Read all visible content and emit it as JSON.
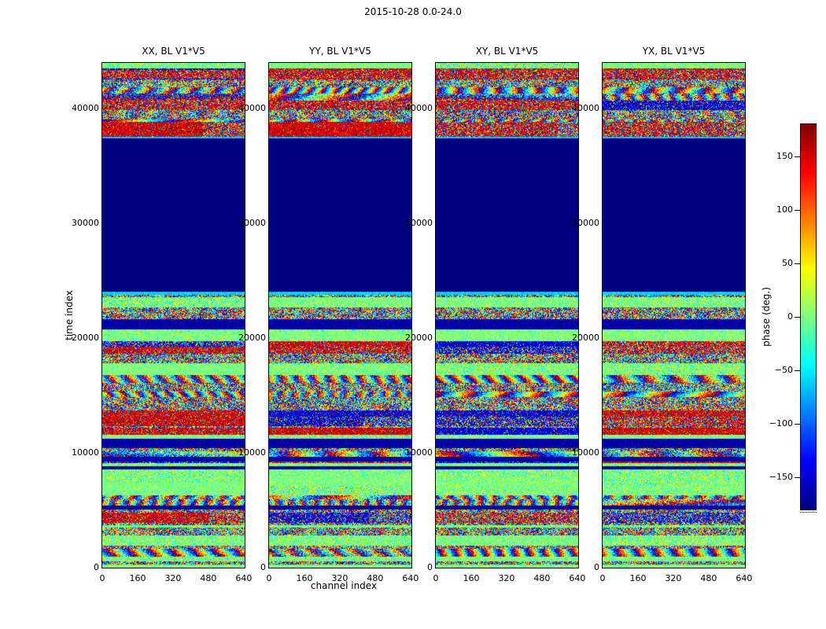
{
  "chart_data": {
    "type": "heatmap",
    "suptitle": "2015-10-28 0.0-24.0",
    "panels": [
      {
        "title": "XX, BL V1*V5"
      },
      {
        "title": "YY, BL V1*V5"
      },
      {
        "title": "XY, BL V1*V5"
      },
      {
        "title": "YX, BL V1*V5"
      }
    ],
    "xlabel": "channel index",
    "ylabel": "time index",
    "xlim": [
      0,
      644
    ],
    "ylim": [
      0,
      44000
    ],
    "xticks": [
      0,
      160,
      320,
      480,
      640
    ],
    "yticks": [
      0,
      10000,
      20000,
      30000,
      40000
    ],
    "colorbar": {
      "label": "phase (deg.)",
      "ticks": [
        150,
        100,
        50,
        0,
        -50,
        -100,
        -150
      ],
      "vmin": -180,
      "vmax": 180,
      "colormap": "jet"
    },
    "regions": [
      {
        "t_start": 0,
        "t_end": 23750,
        "kind": "noise"
      },
      {
        "t_start": 23750,
        "t_end": 24050,
        "kind": "cyan-line"
      },
      {
        "t_start": 24050,
        "t_end": 37420,
        "kind": "flagged-blank"
      },
      {
        "t_start": 37420,
        "t_end": 37560,
        "kind": "cyan-line"
      },
      {
        "t_start": 37560,
        "t_end": 44000,
        "kind": "noise"
      }
    ],
    "notable_bands": [
      {
        "t_start": 37560,
        "t_end": 38850,
        "kind": "saturated",
        "signs": [
          1,
          1,
          1,
          1
        ],
        "strength": [
          0.86,
          0.9,
          0.55,
          0.5
        ],
        "fade": [
          0.7,
          1.0,
          0.85,
          0.85
        ]
      },
      {
        "t_start": 42600,
        "t_end": 43350,
        "kind": "saturated",
        "signs": [
          1,
          1,
          1,
          1
        ],
        "strength": [
          0.6,
          0.62,
          0.55,
          0.5
        ],
        "fade": [
          1,
          1,
          1,
          1
        ]
      },
      {
        "t_start": 12350,
        "t_end": 13150,
        "kind": "saturated",
        "signs": [
          1,
          -1,
          -1,
          1
        ],
        "strength": [
          0.85,
          0.72,
          0.45,
          0.45
        ],
        "fade": [
          1,
          0.65,
          1,
          1
        ]
      },
      {
        "t_start": 18650,
        "t_end": 19250,
        "kind": "saturated",
        "signs": [
          1,
          1,
          -1,
          1
        ],
        "strength": [
          0.75,
          0.6,
          0.5,
          0.45
        ],
        "fade": [
          1,
          1,
          1,
          1
        ]
      },
      {
        "t_start": 8600,
        "t_end": 8830,
        "kind": "dark"
      },
      {
        "t_start": 3900,
        "t_end": 4800,
        "kind": "saturated",
        "signs": [
          1,
          -1,
          1,
          -1
        ],
        "strength": [
          0.8,
          0.7,
          0.4,
          0.4
        ],
        "fade": [
          0.75,
          0.7,
          1,
          1
        ]
      }
    ]
  }
}
